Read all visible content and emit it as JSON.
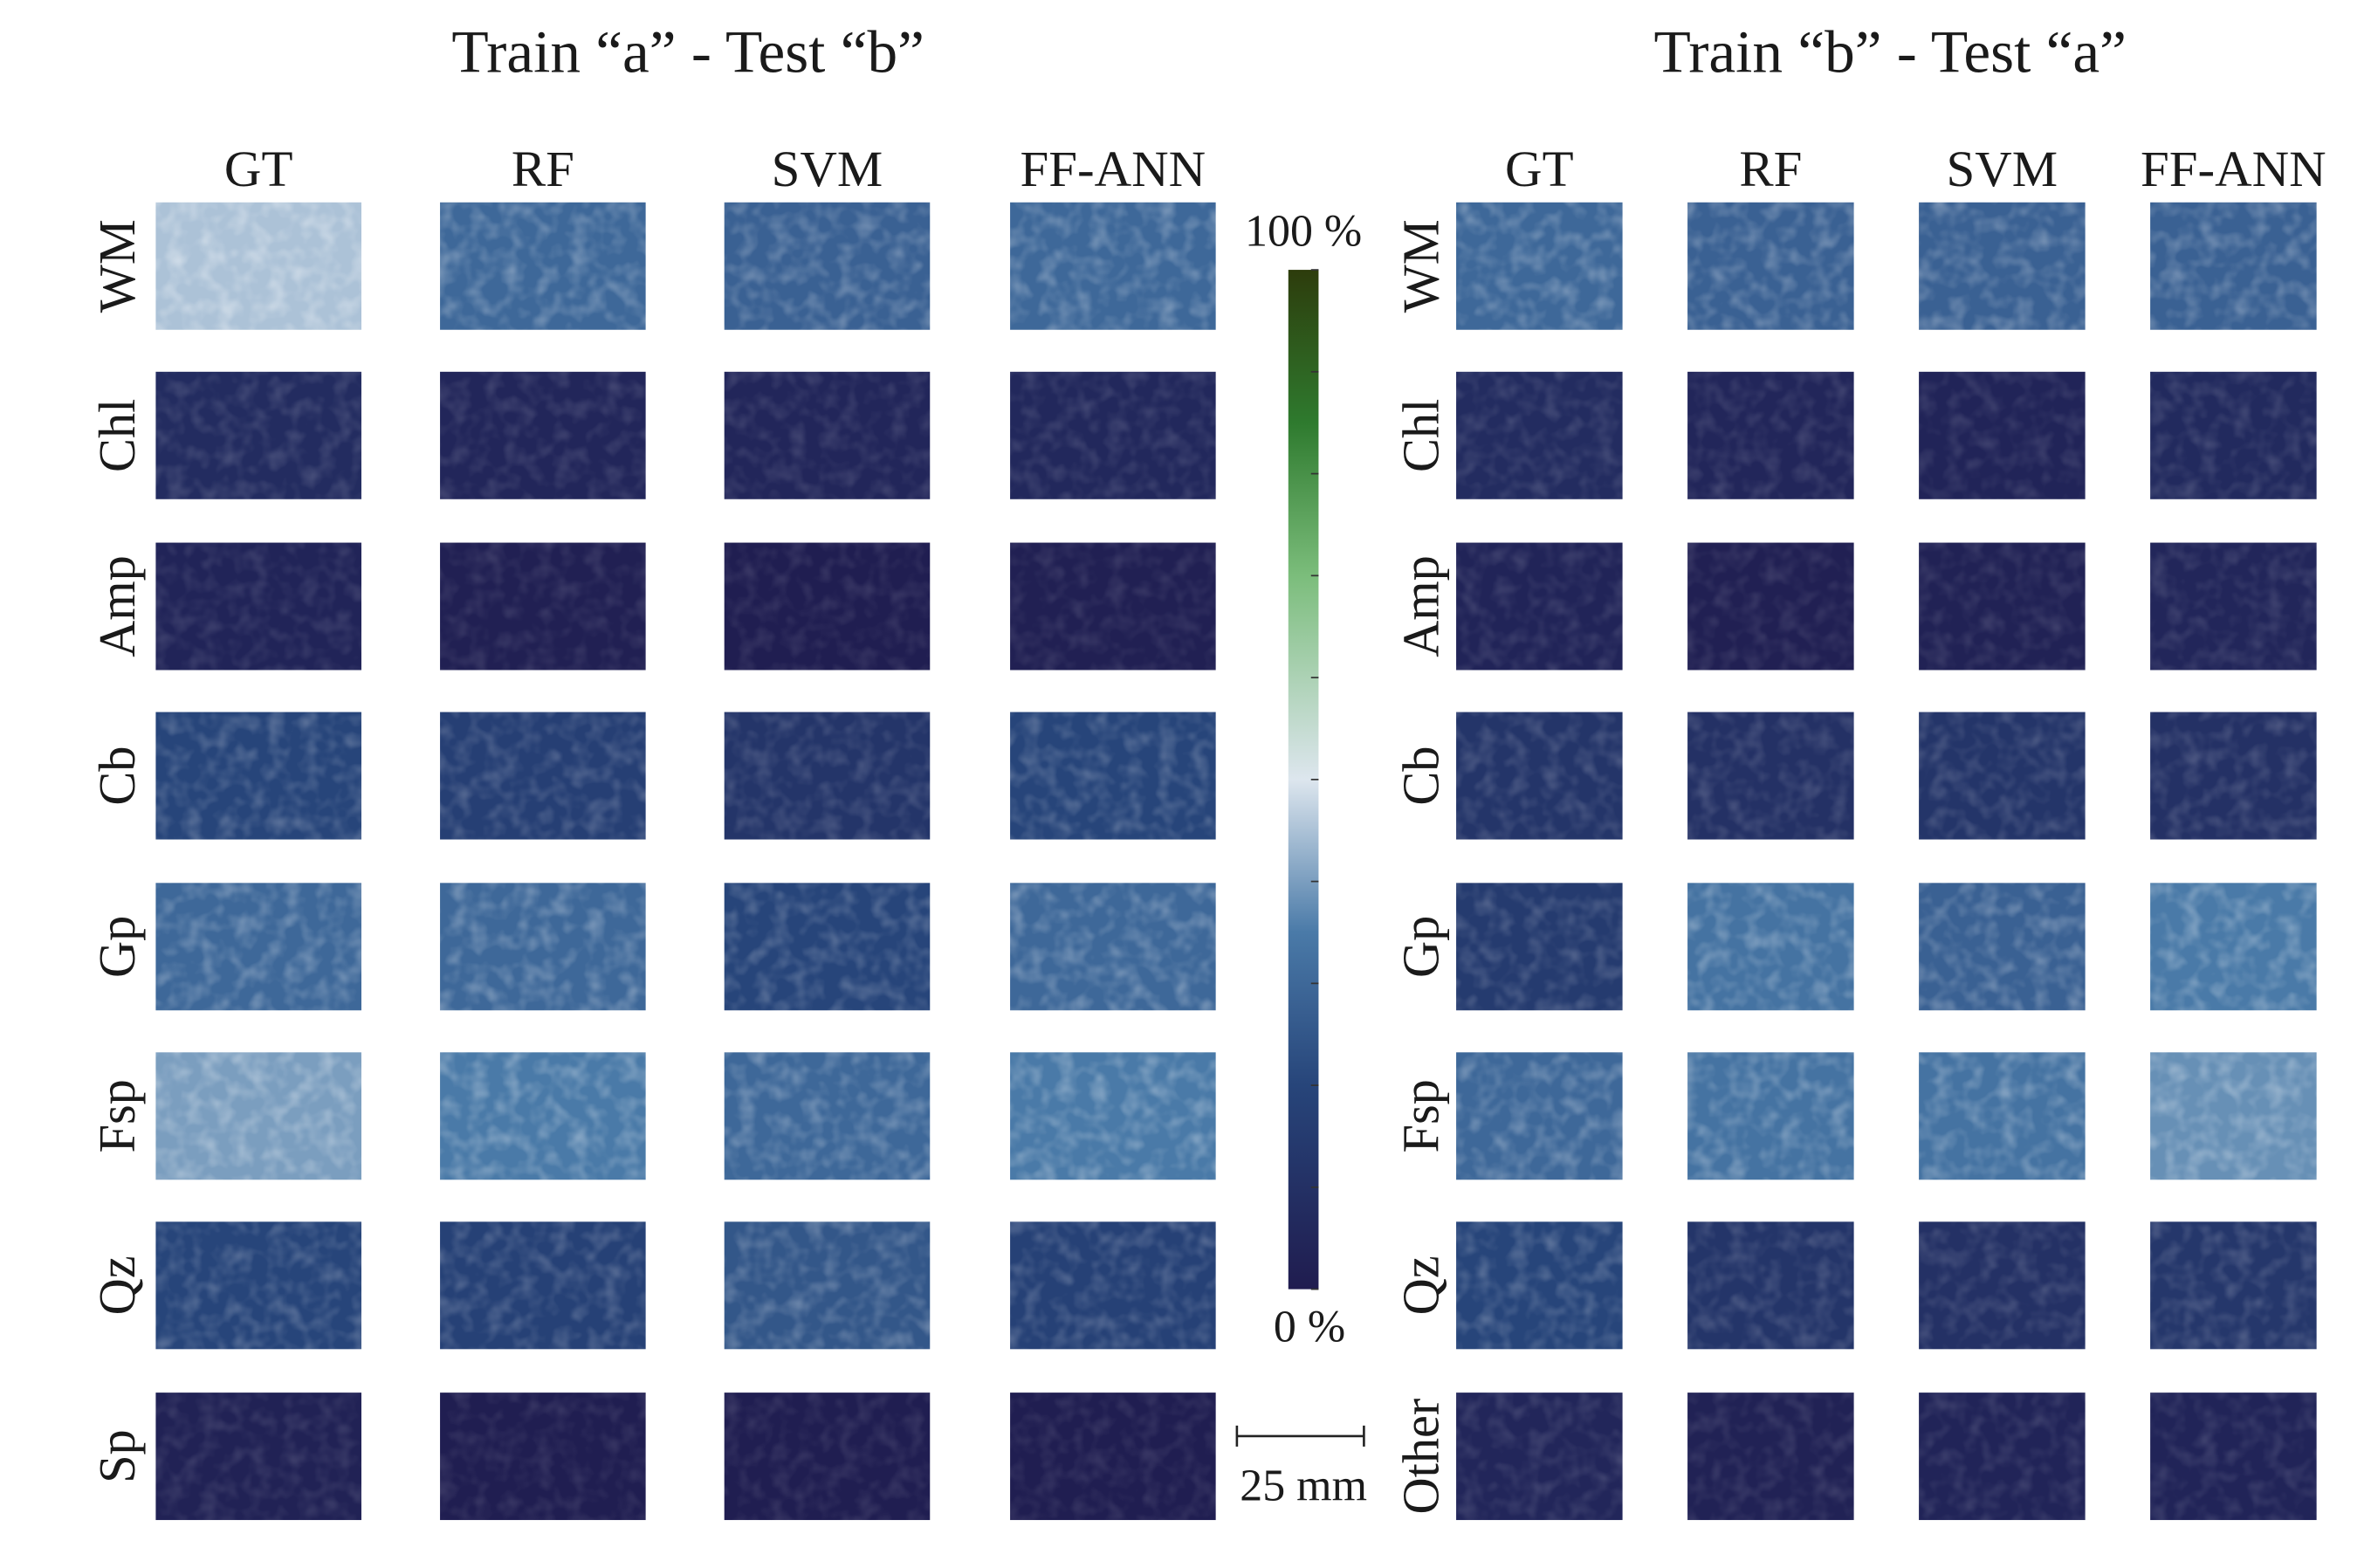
{
  "panels": [
    {
      "title": "Train “a”  - Test “b”",
      "columns": [
        "GT",
        "RF",
        "SVM",
        "FF-ANN"
      ],
      "rows": [
        "WM",
        "Chl",
        "Amp",
        "Cb",
        "Gp",
        "Fsp",
        "Qz",
        "Sp"
      ]
    },
    {
      "title": "Train “b”  - Test “a”",
      "columns": [
        "GT",
        "RF",
        "SVM",
        "FF-ANN"
      ],
      "rows": [
        "WM",
        "Chl",
        "Amp",
        "Cb",
        "Gp",
        "Fsp",
        "Qz",
        "Other"
      ]
    }
  ],
  "colorbar": {
    "max_label": "100 %",
    "min_label": "0 %"
  },
  "scale_bar": {
    "label": "25 mm"
  }
}
